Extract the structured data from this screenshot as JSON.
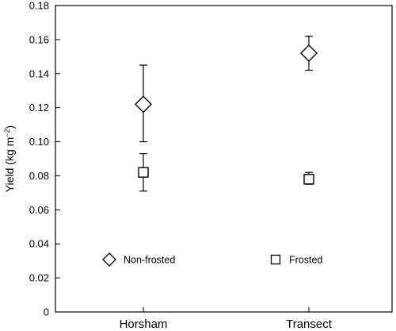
{
  "chart_data": {
    "type": "scatter",
    "categories": [
      "Horsham",
      "Transect"
    ],
    "ylabel": "Yield (kg m",
    "ylabel_sup": "−2",
    "ylabel_close": ")",
    "ylim": [
      0,
      0.18
    ],
    "yticks": [
      0,
      0.02,
      0.04,
      0.06,
      0.08,
      0.1,
      0.12,
      0.14,
      0.16,
      0.18
    ],
    "ytick_labels": [
      "0",
      "0.02",
      "0.04",
      "0.06",
      "0.08",
      "0.10",
      "0.12",
      "0.14",
      "0.16",
      "0.18"
    ],
    "grid": false,
    "legend_position": "bottom",
    "series": [
      {
        "name": "Non-frosted",
        "marker": "diamond",
        "values": [
          0.122,
          0.152
        ],
        "err_low": [
          0.1,
          0.142
        ],
        "err_high": [
          0.145,
          0.162
        ]
      },
      {
        "name": "Frosted",
        "marker": "square",
        "values": [
          0.082,
          0.078
        ],
        "err_low": [
          0.071,
          0.075
        ],
        "err_high": [
          0.093,
          0.082
        ]
      }
    ]
  }
}
